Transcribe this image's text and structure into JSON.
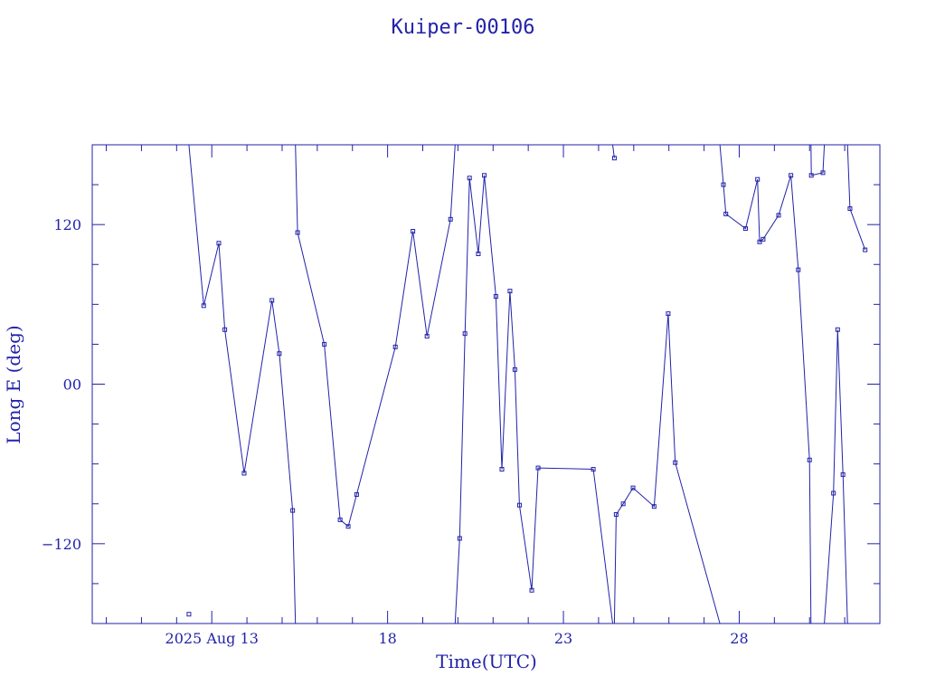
{
  "chart_data": {
    "type": "line",
    "title": "Kuiper-00106",
    "xlabel": "Time(UTC)",
    "ylabel": "Long E (deg)",
    "x_unit": "day of 2025 Aug (UTC, fractional)",
    "xlim": [
      9.6,
      32
    ],
    "ylim": [
      -180,
      180
    ],
    "x_ticks": [
      {
        "value": 13,
        "label": "2025 Aug 13"
      },
      {
        "value": 18,
        "label": "18"
      },
      {
        "value": 23,
        "label": "23"
      },
      {
        "value": 28,
        "label": "28"
      }
    ],
    "y_ticks": [
      {
        "value": 120,
        "label": "120"
      },
      {
        "value": 0,
        "label": "00"
      },
      {
        "value": -120,
        "label": "−120"
      }
    ],
    "grid": false,
    "color": "#2222aa",
    "series": [
      {
        "points": [
          [
            12.35,
            180
          ],
          [
            12.77,
            59
          ],
          [
            13.2,
            106
          ],
          [
            13.37,
            41
          ],
          [
            13.92,
            -67
          ],
          [
            14.71,
            63
          ],
          [
            14.92,
            23
          ],
          [
            15.3,
            -95
          ],
          [
            15.38,
            -180
          ]
        ]
      },
      {
        "points": [
          [
            15.38,
            180
          ],
          [
            15.44,
            114
          ],
          [
            16.2,
            30
          ],
          [
            16.65,
            -102
          ],
          [
            16.88,
            -107
          ],
          [
            17.12,
            -83
          ],
          [
            18.22,
            28
          ],
          [
            18.72,
            115
          ],
          [
            19.12,
            36
          ],
          [
            19.79,
            124
          ],
          [
            19.92,
            180
          ]
        ]
      },
      {
        "points": [
          [
            19.92,
            -180
          ],
          [
            20.05,
            -116
          ],
          [
            20.2,
            38
          ],
          [
            20.33,
            155
          ],
          [
            20.58,
            98
          ],
          [
            20.75,
            157
          ],
          [
            21.08,
            66
          ],
          [
            21.25,
            -64
          ],
          [
            21.48,
            70
          ],
          [
            21.62,
            11
          ],
          [
            21.75,
            -91
          ],
          [
            22.1,
            -155
          ],
          [
            22.28,
            -63
          ],
          [
            23.85,
            -64
          ],
          [
            24.4,
            -180
          ]
        ]
      },
      {
        "points": [
          [
            24.4,
            180
          ],
          [
            24.45,
            170
          ]
        ]
      },
      {
        "points": [
          [
            24.45,
            -180
          ],
          [
            24.5,
            -98
          ],
          [
            24.7,
            -90
          ],
          [
            24.98,
            -78
          ],
          [
            25.58,
            -92
          ],
          [
            25.98,
            53
          ],
          [
            26.18,
            -59
          ],
          [
            27.45,
            -180
          ]
        ]
      },
      {
        "points": [
          [
            27.45,
            180
          ],
          [
            27.55,
            150
          ],
          [
            27.62,
            128
          ],
          [
            28.18,
            117
          ],
          [
            28.52,
            154
          ],
          [
            28.58,
            107
          ],
          [
            28.68,
            109
          ],
          [
            29.12,
            127
          ],
          [
            29.47,
            157
          ],
          [
            29.68,
            86
          ],
          [
            30.0,
            -57
          ],
          [
            30.04,
            -180
          ]
        ]
      },
      {
        "points": [
          [
            30.04,
            180
          ],
          [
            30.05,
            157
          ],
          [
            30.38,
            159
          ],
          [
            30.42,
            180
          ]
        ]
      },
      {
        "points": [
          [
            30.42,
            -180
          ],
          [
            30.68,
            -82
          ],
          [
            30.8,
            41
          ],
          [
            30.95,
            -68
          ],
          [
            31.08,
            -180
          ]
        ]
      },
      {
        "points": [
          [
            31.08,
            180
          ],
          [
            31.15,
            132
          ],
          [
            31.58,
            101
          ]
        ]
      }
    ],
    "isolated_points": [
      [
        12.35,
        -173
      ]
    ]
  }
}
